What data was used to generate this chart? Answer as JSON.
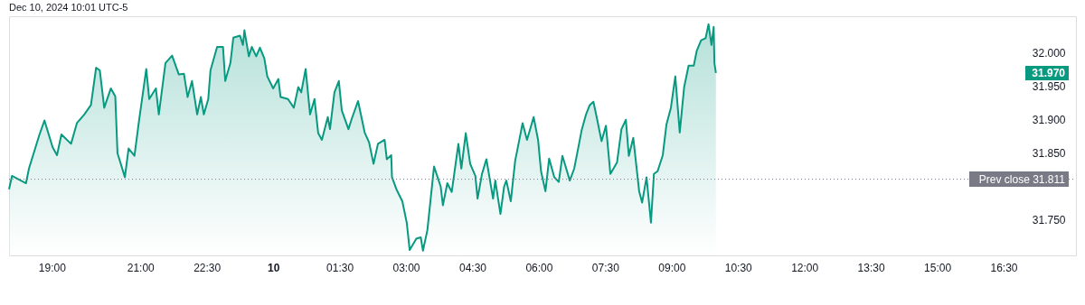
{
  "chart_data": {
    "type": "area",
    "title": "Dec 10, 2024 10:01 UTC-5",
    "x": [
      "2024-12-09T18:02",
      "2024-12-09T18:06",
      "2024-12-09T18:25",
      "2024-12-09T18:29",
      "2024-12-09T18:43",
      "2024-12-09T18:50",
      "2024-12-09T19:01",
      "2024-12-09T19:07",
      "2024-12-09T19:13",
      "2024-12-09T19:26",
      "2024-12-09T19:34",
      "2024-12-09T19:44",
      "2024-12-09T19:53",
      "2024-12-09T20:00",
      "2024-12-09T20:05",
      "2024-12-09T20:11",
      "2024-12-09T20:20",
      "2024-12-09T20:26",
      "2024-12-09T20:29",
      "2024-12-09T20:39",
      "2024-12-09T20:44",
      "2024-12-09T20:52",
      "2024-12-09T20:58",
      "2024-12-09T21:08",
      "2024-12-09T21:12",
      "2024-12-09T21:21",
      "2024-12-09T21:25",
      "2024-12-09T21:34",
      "2024-12-09T21:43",
      "2024-12-09T21:52",
      "2024-12-09T21:59",
      "2024-12-09T22:04",
      "2024-12-09T22:10",
      "2024-12-09T22:17",
      "2024-12-09T22:22",
      "2024-12-09T22:26",
      "2024-12-09T22:32",
      "2024-12-09T22:35",
      "2024-12-09T22:44",
      "2024-12-09T22:52",
      "2024-12-09T22:55",
      "2024-12-09T23:02",
      "2024-12-09T23:06",
      "2024-12-09T23:15",
      "2024-12-09T23:19",
      "2024-12-09T23:21",
      "2024-12-09T23:27",
      "2024-12-09T23:31",
      "2024-12-09T23:37",
      "2024-12-09T23:42",
      "2024-12-09T23:48",
      "2024-12-09T23:52",
      "2024-12-10T00:00",
      "2024-12-10T00:07",
      "2024-12-10T00:10",
      "2024-12-10T00:20",
      "2024-12-10T00:28",
      "2024-12-10T00:34",
      "2024-12-10T00:38",
      "2024-12-10T00:44",
      "2024-12-10T00:50",
      "2024-12-10T00:56",
      "2024-12-10T01:01",
      "2024-12-10T01:06",
      "2024-12-10T01:14",
      "2024-12-10T01:17",
      "2024-12-10T01:23",
      "2024-12-10T01:29",
      "2024-12-10T01:33",
      "2024-12-10T01:42",
      "2024-12-10T01:46",
      "2024-12-10T01:55",
      "2024-12-10T02:04",
      "2024-12-10T02:10",
      "2024-12-10T02:16",
      "2024-12-10T02:22",
      "2024-12-10T02:31",
      "2024-12-10T02:34",
      "2024-12-10T02:40",
      "2024-12-10T02:41",
      "2024-12-10T02:47",
      "2024-12-10T02:55",
      "2024-12-10T03:01",
      "2024-12-10T03:05",
      "2024-12-10T03:14",
      "2024-12-10T03:20",
      "2024-12-10T03:23",
      "2024-12-10T03:29",
      "2024-12-10T03:38",
      "2024-12-10T03:47",
      "2024-12-10T03:50",
      "2024-12-10T03:56",
      "2024-12-10T04:02",
      "2024-12-10T04:11",
      "2024-12-10T04:15",
      "2024-12-10T04:21",
      "2024-12-10T04:27",
      "2024-12-10T04:34",
      "2024-12-10T04:37",
      "2024-12-10T04:43",
      "2024-12-10T04:49",
      "2024-12-10T04:58",
      "2024-12-10T05:01",
      "2024-12-10T05:08",
      "2024-12-10T05:13",
      "2024-12-10T05:16",
      "2024-12-10T05:22",
      "2024-12-10T05:28",
      "2024-12-10T05:32",
      "2024-12-10T05:38",
      "2024-12-10T05:44",
      "2024-12-10T05:53",
      "2024-12-10T05:59",
      "2024-12-10T06:03",
      "2024-12-10T06:09",
      "2024-12-10T06:14",
      "2024-12-10T06:21",
      "2024-12-10T06:27",
      "2024-12-10T06:32",
      "2024-12-10T06:42",
      "2024-12-10T06:48",
      "2024-12-10T06:54",
      "2024-12-10T06:58",
      "2024-12-10T07:04",
      "2024-12-10T07:09",
      "2024-12-10T07:14",
      "2024-12-10T07:19",
      "2024-12-10T07:25",
      "2024-12-10T07:31",
      "2024-12-10T07:37",
      "2024-12-10T07:46",
      "2024-12-10T07:52",
      "2024-12-10T07:58",
      "2024-12-10T08:02",
      "2024-12-10T08:08",
      "2024-12-10T08:16",
      "2024-12-10T08:20",
      "2024-12-10T08:26",
      "2024-12-10T08:32",
      "2024-12-10T08:36",
      "2024-12-10T08:41",
      "2024-12-10T08:48",
      "2024-12-10T08:53",
      "2024-12-10T08:59",
      "2024-12-10T09:05",
      "2024-12-10T09:11",
      "2024-12-10T09:17",
      "2024-12-10T09:23",
      "2024-12-10T09:30",
      "2024-12-10T09:34",
      "2024-12-10T09:40",
      "2024-12-10T09:46",
      "2024-12-10T09:50",
      "2024-12-10T09:54",
      "2024-12-10T09:57",
      "2024-12-10T09:58",
      "2024-12-10T10:00"
    ],
    "series": [
      {
        "color": "#089981",
        "values": [
          31.796,
          31.816,
          31.805,
          31.827,
          31.877,
          31.899,
          31.859,
          31.847,
          31.878,
          31.864,
          31.895,
          31.908,
          31.922,
          31.978,
          31.974,
          31.918,
          31.947,
          31.935,
          31.85,
          31.814,
          31.857,
          31.846,
          31.897,
          31.976,
          31.931,
          31.947,
          31.908,
          31.985,
          31.996,
          31.968,
          31.969,
          31.934,
          31.958,
          31.908,
          31.934,
          31.908,
          31.931,
          31.974,
          32.009,
          32.009,
          31.958,
          31.985,
          32.023,
          32.026,
          32.012,
          32.034,
          31.995,
          32.009,
          31.995,
          32.008,
          31.992,
          31.965,
          31.947,
          31.961,
          31.934,
          31.931,
          31.918,
          31.949,
          31.941,
          31.976,
          31.908,
          31.931,
          31.88,
          31.87,
          31.904,
          31.886,
          31.941,
          31.958,
          31.914,
          31.886,
          31.9,
          31.928,
          31.881,
          31.866,
          31.834,
          31.864,
          31.87,
          31.841,
          31.847,
          31.814,
          31.796,
          31.778,
          31.746,
          31.705,
          31.722,
          31.724,
          31.704,
          31.735,
          31.83,
          31.8,
          31.772,
          31.805,
          31.792,
          31.864,
          31.827,
          31.88,
          31.834,
          31.816,
          31.782,
          31.819,
          31.841,
          31.782,
          31.809,
          31.759,
          31.8,
          31.809,
          31.778,
          31.839,
          31.861,
          31.895,
          31.87,
          31.904,
          31.87,
          31.823,
          31.793,
          31.842,
          31.814,
          31.807,
          31.846,
          31.809,
          31.827,
          31.861,
          31.884,
          31.908,
          31.922,
          31.927,
          31.901,
          31.868,
          31.891,
          31.819,
          31.836,
          31.886,
          31.9,
          31.846,
          31.873,
          31.793,
          31.776,
          31.814,
          31.746,
          31.819,
          31.823,
          31.847,
          31.893,
          31.918,
          31.965,
          31.881,
          31.949,
          31.981,
          31.981,
          32.003,
          32.019,
          32.022,
          32.043,
          32.012,
          32.039,
          31.985,
          31.97
        ]
      }
    ],
    "xlim": [
      "2024-12-09T18:02",
      "2024-12-10T18:08"
    ],
    "ylim": [
      31.697,
      32.055
    ],
    "xticks": [
      {
        "value": "2024-12-09T19:00",
        "label": "19:00"
      },
      {
        "value": "2024-12-09T21:00",
        "label": "21:00"
      },
      {
        "value": "2024-12-09T22:30",
        "label": "22:30"
      },
      {
        "value": "2024-12-10T00:00",
        "label": "10"
      },
      {
        "value": "2024-12-10T01:30",
        "label": "01:30"
      },
      {
        "value": "2024-12-10T03:00",
        "label": "03:00"
      },
      {
        "value": "2024-12-10T04:30",
        "label": "04:30"
      },
      {
        "value": "2024-12-10T06:00",
        "label": "06:00"
      },
      {
        "value": "2024-12-10T07:30",
        "label": "07:30"
      },
      {
        "value": "2024-12-10T09:00",
        "label": "09:00"
      },
      {
        "value": "2024-12-10T10:30",
        "label": "10:30"
      },
      {
        "value": "2024-12-10T12:00",
        "label": "12:00"
      },
      {
        "value": "2024-12-10T13:30",
        "label": "13:30"
      },
      {
        "value": "2024-12-10T15:00",
        "label": "15:00"
      },
      {
        "value": "2024-12-10T16:30",
        "label": "16:30"
      }
    ],
    "yticks": [
      {
        "value": 31.75,
        "label": "31.750"
      },
      {
        "value": 31.85,
        "label": "31.850"
      },
      {
        "value": 31.9,
        "label": "31.900"
      },
      {
        "value": 31.95,
        "label": "31.950"
      },
      {
        "value": 32.0,
        "label": "32.000"
      }
    ],
    "ref_lines": [
      {
        "axis": "y",
        "value": 31.811,
        "label": "Prev close 31.811",
        "color": "#787b86",
        "line_style": "dotted"
      }
    ],
    "annotations": [
      "31.970"
    ],
    "grid": false
  }
}
